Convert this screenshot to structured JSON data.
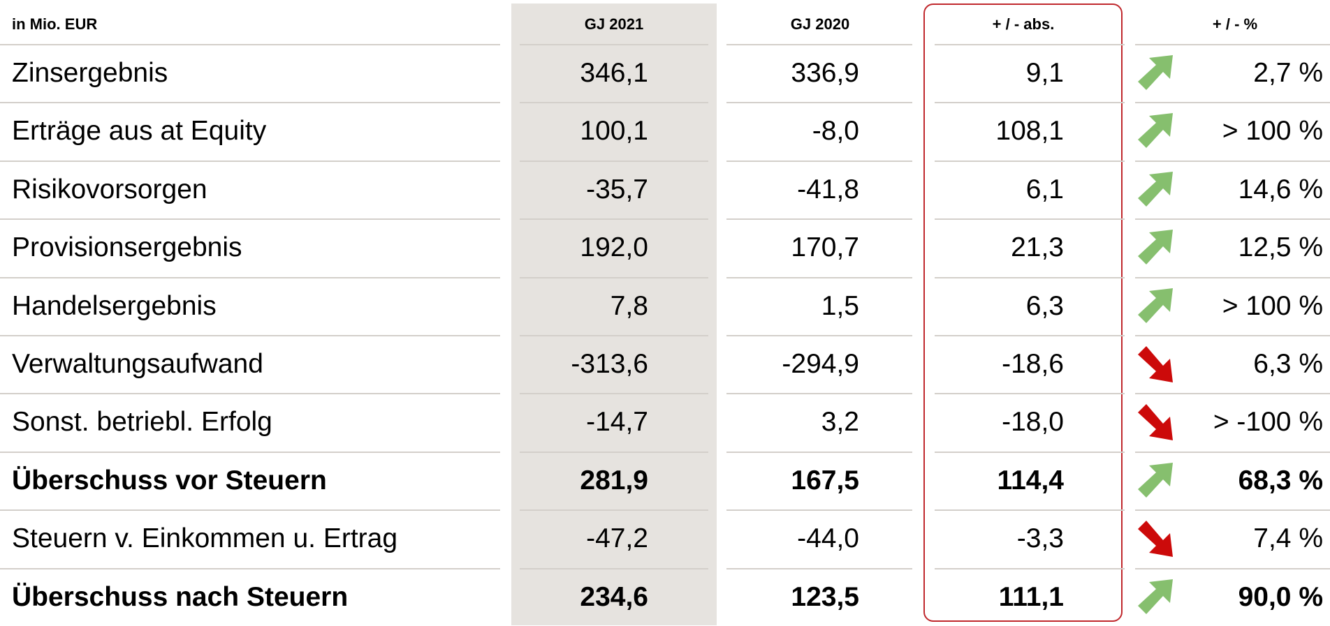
{
  "table": {
    "unit": "in Mio. EUR",
    "columns": [
      "GJ 2021",
      "GJ 2020",
      "+ / - abs.",
      "+ / - %"
    ],
    "rows": [
      {
        "label": "Zinsergebnis",
        "values": [
          "346,1",
          "336,9",
          "9,1",
          "2,7 %"
        ],
        "trend": "up",
        "bold": false
      },
      {
        "label": "Erträge aus at Equity",
        "values": [
          "100,1",
          "-8,0",
          "108,1",
          "> 100 %"
        ],
        "trend": "up",
        "bold": false
      },
      {
        "label": "Risikovorsorgen",
        "values": [
          "-35,7",
          "-41,8",
          "6,1",
          "14,6 %"
        ],
        "trend": "up",
        "bold": false
      },
      {
        "label": "Provisionsergebnis",
        "values": [
          "192,0",
          "170,7",
          "21,3",
          "12,5 %"
        ],
        "trend": "up",
        "bold": false
      },
      {
        "label": "Handelsergebnis",
        "values": [
          "7,8",
          "1,5",
          "6,3",
          "> 100 %"
        ],
        "trend": "up",
        "bold": false
      },
      {
        "label": "Verwaltungsaufwand",
        "values": [
          "-313,6",
          "-294,9",
          "-18,6",
          "6,3 %"
        ],
        "trend": "down",
        "bold": false
      },
      {
        "label": "Sonst. betriebl. Erfolg",
        "values": [
          "-14,7",
          "3,2",
          "-18,0",
          "> -100 %"
        ],
        "trend": "down",
        "bold": false
      },
      {
        "label": "Überschuss vor Steuern",
        "values": [
          "281,9",
          "167,5",
          "114,4",
          "68,3 %"
        ],
        "trend": "up",
        "bold": true
      },
      {
        "label": "Steuern v. Einkommen u. Ertrag",
        "values": [
          "-47,2",
          "-44,0",
          "-3,3",
          "7,4 %"
        ],
        "trend": "down",
        "bold": false
      },
      {
        "label": "Überschuss nach Steuern",
        "values": [
          "234,6",
          "123,5",
          "111,1",
          "90,0 %"
        ],
        "trend": "up",
        "bold": true
      }
    ]
  }
}
